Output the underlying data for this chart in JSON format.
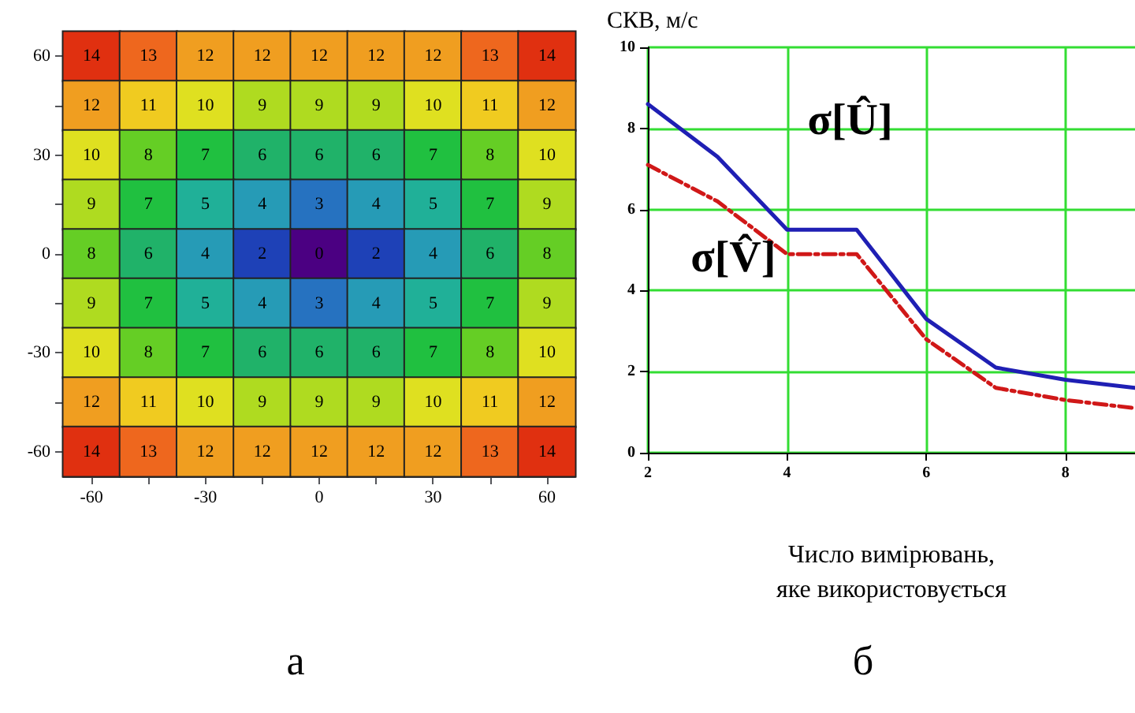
{
  "chart_data": [
    {
      "type": "heatmap",
      "categories": [
        "-60",
        null,
        "-30",
        null,
        "0",
        null,
        "30",
        null,
        "60"
      ],
      "y_categories": [
        "60",
        null,
        "30",
        null,
        "0",
        null,
        "-30",
        null,
        "-60"
      ],
      "data_labels": true,
      "annotations": [
        "а"
      ],
      "cells": [
        [
          14,
          13,
          12,
          12,
          12,
          12,
          12,
          13,
          14
        ],
        [
          12,
          11,
          10,
          9,
          9,
          9,
          10,
          11,
          12
        ],
        [
          10,
          8,
          7,
          6,
          6,
          6,
          7,
          8,
          10
        ],
        [
          9,
          7,
          5,
          4,
          3,
          4,
          5,
          7,
          9
        ],
        [
          8,
          6,
          4,
          2,
          0,
          2,
          4,
          6,
          8
        ],
        [
          9,
          7,
          5,
          4,
          3,
          4,
          5,
          7,
          9
        ],
        [
          10,
          8,
          7,
          6,
          6,
          6,
          7,
          8,
          10
        ],
        [
          12,
          11,
          10,
          9,
          9,
          9,
          10,
          11,
          12
        ],
        [
          14,
          13,
          12,
          12,
          12,
          12,
          12,
          13,
          14
        ]
      ]
    },
    {
      "type": "line",
      "ylabel": "СКВ, м/с",
      "xlabel": "Число вимірювань,\nяке використовується",
      "annotations": [
        "б"
      ],
      "xlim": [
        2,
        9
      ],
      "xticks": [
        2,
        4,
        6,
        8
      ],
      "ylim": [
        0,
        10
      ],
      "yticks": [
        0,
        2,
        4,
        6,
        8,
        10
      ],
      "grid": true,
      "legend": false,
      "x": [
        2,
        3,
        4,
        5,
        6,
        7,
        8,
        9
      ],
      "series": [
        {
          "name": "σ[Û]",
          "color": "#1f1fb4",
          "line_style": "solid",
          "values": [
            8.6,
            7.3,
            5.5,
            5.5,
            3.3,
            2.1,
            1.8,
            1.6
          ]
        },
        {
          "name": "σ[V̂]",
          "color": "#d01818",
          "line_style": "dashed",
          "values": [
            7.1,
            6.2,
            4.9,
            4.9,
            2.8,
            1.6,
            1.3,
            1.1
          ]
        }
      ]
    }
  ]
}
